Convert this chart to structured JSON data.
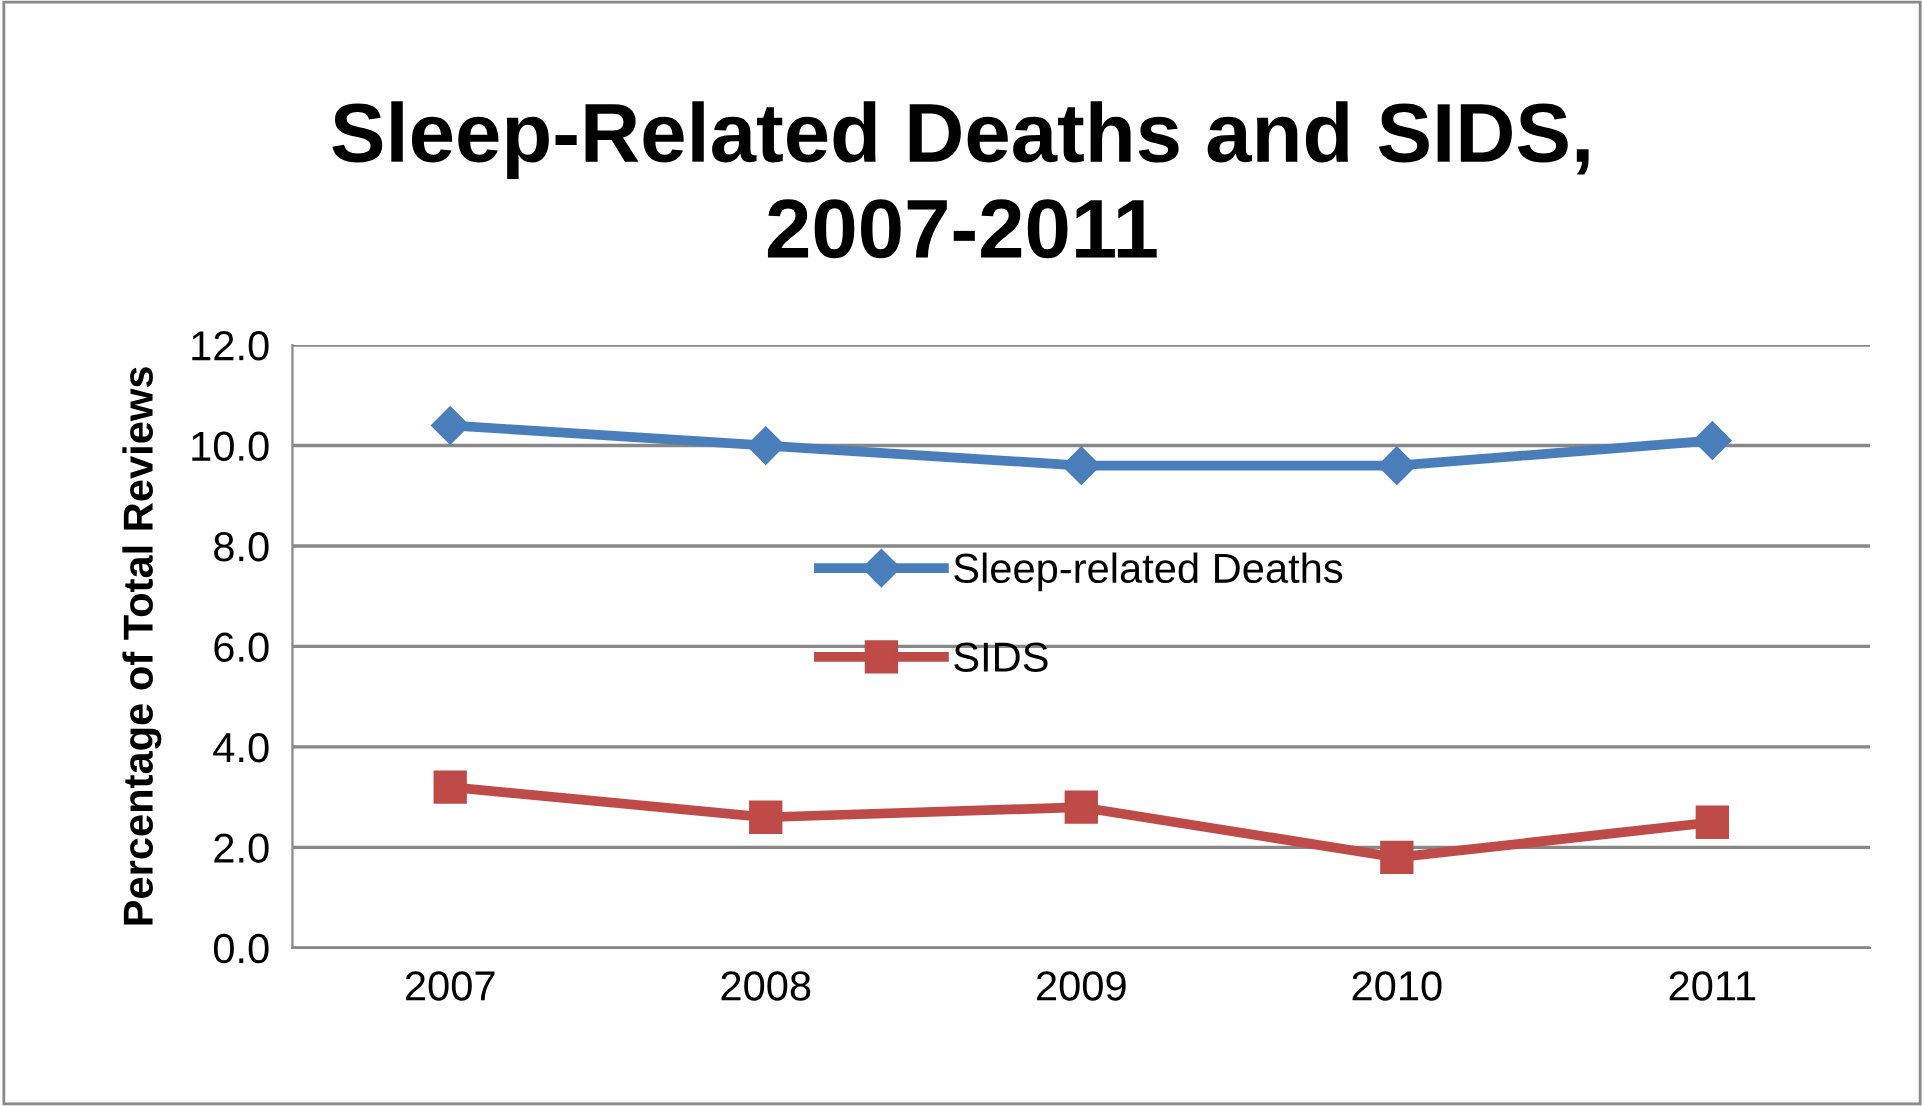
{
  "chart_data": {
    "type": "line",
    "title": "Sleep-Related Deaths and SIDS,\n2007-2011",
    "ylabel": "Percentage of Total Reviews",
    "categories": [
      "2007",
      "2008",
      "2009",
      "2010",
      "2011"
    ],
    "series": [
      {
        "name": "Sleep-related Deaths",
        "color": "#4a7ebb",
        "marker": "diamond",
        "values": [
          10.4,
          10.0,
          9.6,
          9.6,
          10.1
        ]
      },
      {
        "name": "SIDS",
        "color": "#be4b48",
        "marker": "square",
        "values": [
          3.2,
          2.6,
          2.8,
          1.8,
          2.5
        ]
      }
    ],
    "ylim": [
      0,
      12
    ],
    "yticks": [
      {
        "value": 0,
        "label": "0.0"
      },
      {
        "value": 2,
        "label": "2.0"
      },
      {
        "value": 4,
        "label": "4.0"
      },
      {
        "value": 6,
        "label": "6.0"
      },
      {
        "value": 8,
        "label": "8.0"
      },
      {
        "value": 10,
        "label": "10.0"
      },
      {
        "value": 12,
        "label": "12.0"
      }
    ],
    "grid": "y",
    "legend": "center",
    "line_style": "solid"
  }
}
